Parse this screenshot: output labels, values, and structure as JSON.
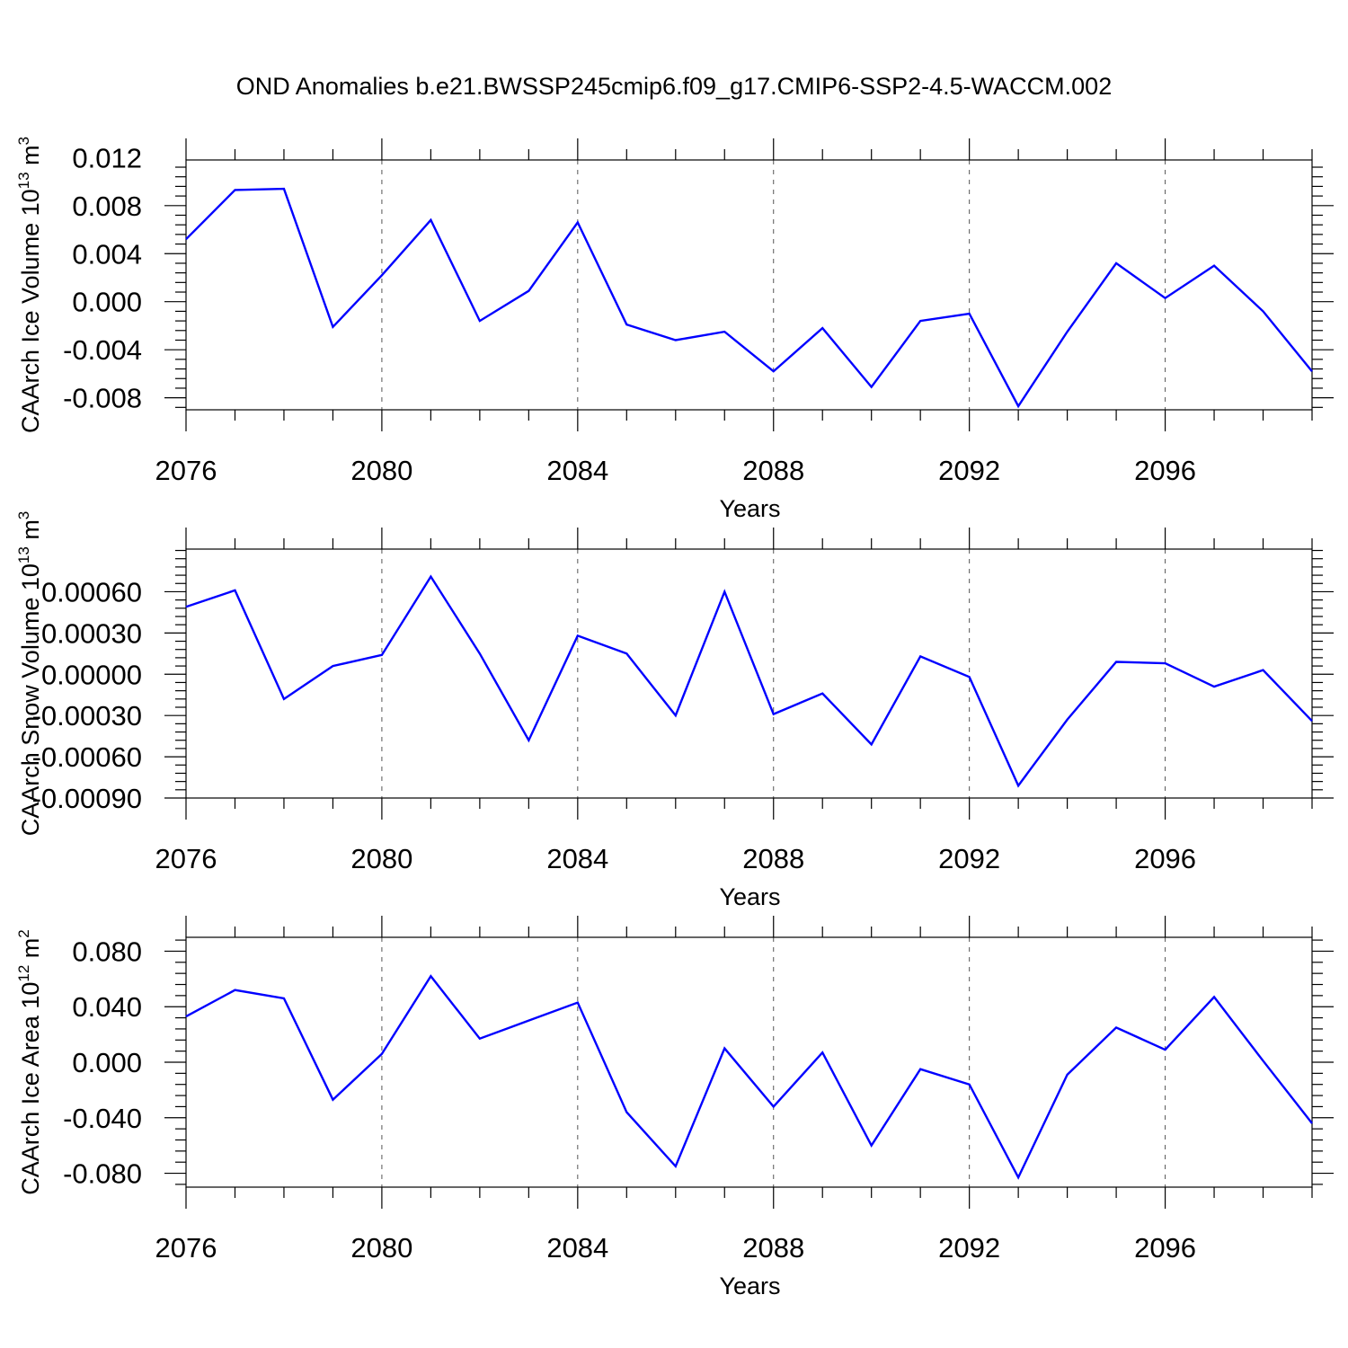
{
  "title": "OND Anomalies b.e21.BWSSP245cmip6.f09_g17.CMIP6-SSP2-4.5-WACCM.002",
  "line_color": "#0000ff",
  "chart_data": [
    {
      "type": "line",
      "xlabel": "Years",
      "ylabel": "CAArch Ice Volume 10",
      "ylabel_exp": "13",
      "ylabel_unit": " m",
      "ylabel_unit_exp": "3",
      "xlim": [
        2076,
        2099
      ],
      "ylim": [
        -0.009,
        0.0118
      ],
      "xticks": [
        2076,
        2080,
        2084,
        2088,
        2092,
        2096
      ],
      "xtick_labels": [
        "2076",
        "2080",
        "2084",
        "2088",
        "2092",
        "2096"
      ],
      "yticks": [
        -0.008,
        -0.004,
        0.0,
        0.004,
        0.008,
        0.012
      ],
      "ytick_labels": [
        "-0.008",
        "-0.004",
        "0.000",
        "0.004",
        "0.008",
        "0.012"
      ],
      "x": [
        2076,
        2077,
        2078,
        2079,
        2080,
        2081,
        2082,
        2083,
        2084,
        2085,
        2086,
        2087,
        2088,
        2089,
        2090,
        2091,
        2092,
        2093,
        2094,
        2095,
        2096,
        2097,
        2098,
        2099
      ],
      "y": [
        0.0052,
        0.0093,
        0.0094,
        -0.0021,
        0.0022,
        0.0068,
        -0.0016,
        0.0009,
        0.0066,
        -0.0019,
        -0.0032,
        -0.0025,
        -0.0058,
        -0.0022,
        -0.0071,
        -0.0016,
        -0.001,
        -0.0087,
        -0.0025,
        0.0032,
        0.0003,
        0.003,
        -0.0008,
        -0.0058
      ]
    },
    {
      "type": "line",
      "xlabel": "Years",
      "ylabel": "CAArch Snow Volume 10",
      "ylabel_exp": "13",
      "ylabel_unit": " m",
      "ylabel_unit_exp": "3",
      "xlim": [
        2076,
        2099
      ],
      "ylim": [
        -0.0009,
        0.00091
      ],
      "xticks": [
        2076,
        2080,
        2084,
        2088,
        2092,
        2096
      ],
      "xtick_labels": [
        "2076",
        "2080",
        "2084",
        "2088",
        "2092",
        "2096"
      ],
      "yticks": [
        -0.0009,
        -0.0006,
        -0.0003,
        0.0,
        0.0003,
        0.0006
      ],
      "ytick_labels": [
        "-0.00090",
        "-0.00060",
        "-0.00030",
        "0.00000",
        "0.00030",
        "0.00060"
      ],
      "x": [
        2076,
        2077,
        2078,
        2079,
        2080,
        2081,
        2082,
        2083,
        2084,
        2085,
        2086,
        2087,
        2088,
        2089,
        2090,
        2091,
        2092,
        2093,
        2094,
        2095,
        2096,
        2097,
        2098,
        2099
      ],
      "y": [
        0.00049,
        0.00061,
        -0.00018,
        6e-05,
        0.00014,
        0.00071,
        0.00015,
        -0.00048,
        0.00028,
        0.00015,
        -0.0003,
        0.0006,
        -0.00029,
        -0.00014,
        -0.00051,
        0.00013,
        -2e-05,
        -0.00081,
        -0.00033,
        9e-05,
        8e-05,
        -9e-05,
        3e-05,
        -0.00034
      ]
    },
    {
      "type": "line",
      "xlabel": "Years",
      "ylabel": "CAArch Ice Area 10",
      "ylabel_exp": "12",
      "ylabel_unit": " m",
      "ylabel_unit_exp": "2",
      "xlim": [
        2076,
        2099
      ],
      "ylim": [
        -0.09,
        0.09
      ],
      "xticks": [
        2076,
        2080,
        2084,
        2088,
        2092,
        2096
      ],
      "xtick_labels": [
        "2076",
        "2080",
        "2084",
        "2088",
        "2092",
        "2096"
      ],
      "yticks": [
        -0.08,
        -0.04,
        0.0,
        0.04,
        0.08
      ],
      "ytick_labels": [
        "-0.080",
        "-0.040",
        "0.000",
        "0.040",
        "0.080"
      ],
      "x": [
        2076,
        2077,
        2078,
        2079,
        2080,
        2081,
        2082,
        2083,
        2084,
        2085,
        2086,
        2087,
        2088,
        2089,
        2090,
        2091,
        2092,
        2093,
        2094,
        2095,
        2096,
        2097,
        2098,
        2099
      ],
      "y": [
        0.033,
        0.052,
        0.046,
        -0.027,
        0.006,
        0.062,
        0.017,
        0.03,
        0.043,
        -0.036,
        -0.075,
        0.01,
        -0.032,
        0.007,
        -0.06,
        -0.005,
        -0.016,
        -0.083,
        -0.009,
        0.025,
        0.009,
        0.047,
        0.001,
        -0.044
      ]
    }
  ]
}
